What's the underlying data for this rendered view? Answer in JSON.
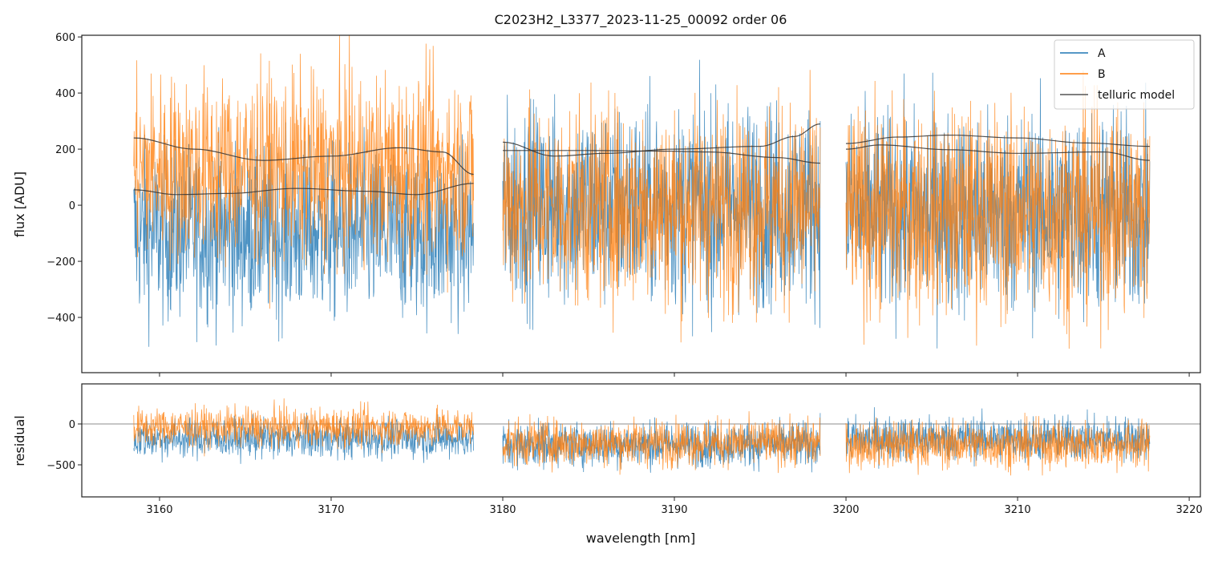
{
  "chart_data": {
    "type": "line",
    "title": "C2023H2_L3377_2023-11-25_00092  order 06",
    "xlabel": "wavelength [nm]",
    "xlim": [
      3155.47,
      3220.65
    ],
    "xticks": [
      3160,
      3170,
      3180,
      3190,
      3200,
      3210,
      3220
    ],
    "legend": {
      "placement": "top-right",
      "entries": [
        "A",
        "B",
        "telluric model"
      ]
    },
    "colors": {
      "A": "#1f77b4",
      "B": "#ff7f0e",
      "model": "#333333",
      "zero": "#666666"
    },
    "segments": [
      [
        3158.5,
        3178.3
      ],
      [
        3180.0,
        3198.5
      ],
      [
        3200.0,
        3217.7
      ]
    ],
    "panels": [
      {
        "name": "flux",
        "ylabel": "flux [ADU]",
        "ylim": [
          -597,
          606
        ],
        "yticks": [
          -400,
          -200,
          0,
          200,
          400,
          600
        ],
        "series": [
          {
            "name": "A",
            "segment_center": [
              -100,
              0,
              -30
            ],
            "segment_spread": [
              260,
              300,
              300
            ]
          },
          {
            "name": "B",
            "segment_center": [
              130,
              0,
              -20
            ],
            "segment_spread": [
              280,
              300,
              310
            ]
          }
        ],
        "telluric_model": [
          {
            "segment": 0,
            "x": [
              3158.5,
              3162,
              3166,
              3170,
              3174,
              3176.5,
              3178.3
            ],
            "y": [
              240,
              200,
              160,
              175,
              205,
              190,
              110
            ]
          },
          {
            "segment": 0,
            "x": [
              3158.5,
              3161,
              3164,
              3168,
              3172,
              3175,
              3178.3
            ],
            "y": [
              55,
              38,
              42,
              60,
              50,
              38,
              78
            ]
          },
          {
            "segment": 1,
            "x": [
              3180,
              3183,
              3186,
              3190,
              3195,
              3197,
              3198.5
            ],
            "y": [
              225,
              175,
              185,
              200,
              210,
              245,
              290
            ]
          },
          {
            "segment": 1,
            "x": [
              3180,
              3185,
              3189,
              3192,
              3196,
              3198.5
            ],
            "y": [
              195,
              195,
              193,
              190,
              170,
              150
            ]
          },
          {
            "segment": 2,
            "x": [
              3200,
              3203,
              3206,
              3210,
              3214,
              3217.7
            ],
            "y": [
              220,
              243,
              250,
              240,
              222,
              210
            ]
          },
          {
            "segment": 2,
            "x": [
              3200,
              3202,
              3206,
              3210,
              3215,
              3217.7
            ],
            "y": [
              200,
              215,
              198,
              185,
              190,
              160
            ]
          }
        ]
      },
      {
        "name": "residual",
        "ylabel": "residual",
        "ylim": [
          -892,
          490
        ],
        "yticks": [
          -500,
          0
        ],
        "series": [
          {
            "name": "A",
            "segment_center": [
              -180,
              -250,
              -180
            ],
            "segment_spread": [
              200,
              230,
              230
            ]
          },
          {
            "name": "B",
            "segment_center": [
              -40,
              -230,
              -250
            ],
            "segment_spread": [
              200,
              240,
              240
            ]
          }
        ]
      }
    ]
  }
}
